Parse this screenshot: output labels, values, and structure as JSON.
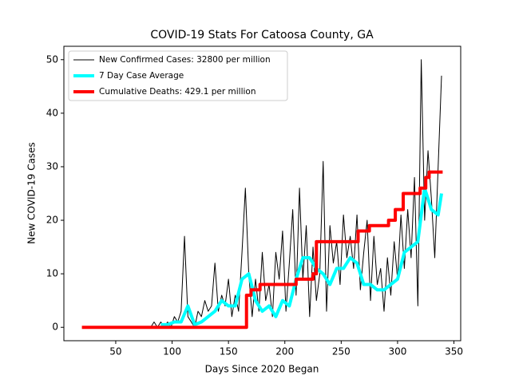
{
  "chart_data": {
    "type": "line",
    "title": "COVID-19 Stats For Catoosa County, GA",
    "xlabel": "Days Since 2020 Began",
    "ylabel": "New COVID-19 Cases",
    "xlim": [
      4,
      356
    ],
    "ylim": [
      -2.5,
      52.5
    ],
    "xticks": [
      50,
      100,
      150,
      200,
      250,
      300,
      350
    ],
    "yticks": [
      0,
      10,
      20,
      30,
      40,
      50
    ],
    "grid": false,
    "legend": "upper left",
    "series": [
      {
        "name": "New Confirmed Cases: 32800 per million",
        "color": "#000000",
        "linewidth": 1,
        "x": [
          81,
          84,
          87,
          90,
          93,
          96,
          99,
          102,
          105,
          108,
          111,
          114,
          117,
          120,
          123,
          126,
          129,
          132,
          135,
          138,
          141,
          144,
          147,
          150,
          153,
          156,
          159,
          162,
          165,
          168,
          171,
          174,
          177,
          180,
          183,
          186,
          189,
          192,
          195,
          198,
          201,
          204,
          207,
          210,
          213,
          216,
          219,
          222,
          225,
          228,
          231,
          234,
          237,
          240,
          243,
          246,
          249,
          252,
          255,
          258,
          261,
          264,
          267,
          270,
          273,
          276,
          279,
          282,
          285,
          288,
          291,
          294,
          297,
          300,
          303,
          306,
          309,
          312,
          315,
          318,
          321,
          324,
          327,
          330,
          333,
          336,
          339
        ],
        "values": [
          0,
          1,
          0,
          1,
          0,
          1,
          0,
          2,
          1,
          3,
          17,
          2,
          1,
          0,
          3,
          2,
          5,
          3,
          4,
          12,
          3,
          6,
          4,
          9,
          2,
          6,
          3,
          14,
          26,
          10,
          2,
          9,
          3,
          14,
          5,
          8,
          2,
          14,
          9,
          18,
          3,
          12,
          22,
          6,
          26,
          9,
          19,
          2,
          15,
          5,
          10,
          31,
          3,
          19,
          12,
          16,
          8,
          21,
          13,
          17,
          11,
          21,
          7,
          14,
          20,
          5,
          17,
          8,
          11,
          3,
          13,
          6,
          16,
          9,
          21,
          11,
          22,
          13,
          28,
          4,
          50,
          20,
          33,
          24,
          13,
          30,
          47
        ]
      },
      {
        "name": "7 Day Case Average",
        "color": "#00ffff",
        "linewidth": 4,
        "x": [
          90,
          96,
          102,
          108,
          114,
          120,
          126,
          132,
          138,
          144,
          150,
          156,
          162,
          168,
          174,
          180,
          186,
          192,
          198,
          204,
          210,
          216,
          222,
          228,
          234,
          240,
          246,
          252,
          258,
          264,
          270,
          276,
          282,
          288,
          294,
          300,
          306,
          312,
          318,
          324,
          330,
          336,
          339
        ],
        "values": [
          0.5,
          0.5,
          1,
          1,
          4,
          0.5,
          1,
          2,
          3,
          5,
          4,
          4,
          9,
          10,
          5,
          3,
          4,
          2,
          5,
          4,
          9,
          13,
          13,
          11,
          10,
          8,
          11,
          11,
          13,
          12,
          8,
          8,
          7,
          7,
          8,
          9,
          14,
          15,
          16,
          26,
          22,
          21,
          25
        ]
      },
      {
        "name": "Cumulative Deaths: 429.1 per million",
        "color": "#ff0000",
        "linewidth": 4,
        "drawstyle": "steps-post",
        "x": [
          20,
          165,
          166,
          170,
          178,
          210,
          225,
          228,
          265,
          275,
          292,
          298,
          305,
          320,
          325,
          328,
          340
        ],
        "values": [
          0,
          0,
          6,
          7,
          8,
          9,
          10,
          16,
          18,
          19,
          20,
          22,
          25,
          26,
          28,
          29,
          29
        ]
      }
    ]
  }
}
